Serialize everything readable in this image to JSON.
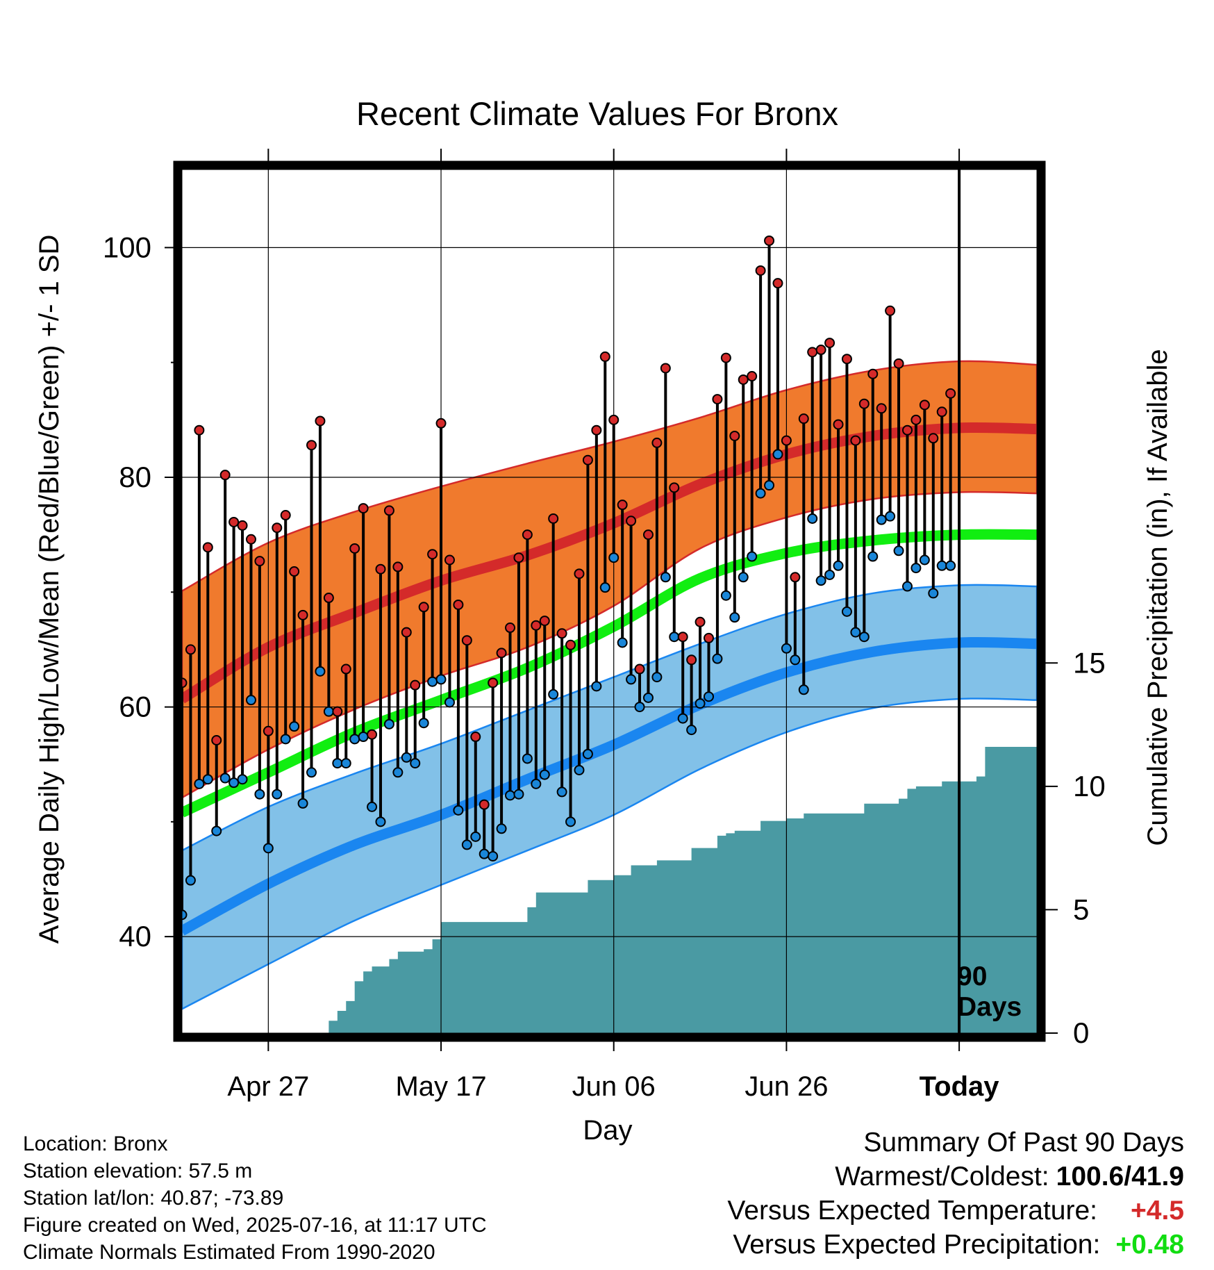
{
  "chart_data": {
    "type": "line",
    "title": "Recent Climate Values For Bronx",
    "xlabel": "Day",
    "ylabel": "Average Daily High/Low/Mean (Red/Blue/Green) +/- 1 SD",
    "y2label": "Cumulative Precipitation (in), If Available",
    "y_ticks": [
      "40",
      "60",
      "80",
      "100"
    ],
    "y2_ticks": [
      "0",
      "5",
      "10",
      "15"
    ],
    "y2lim": [
      0,
      35
    ],
    "ylim": [
      31.6,
      106.8
    ],
    "today_label": [
      "90",
      "Days"
    ],
    "x_start": "2025-04-17",
    "x_end": "2025-07-25",
    "today": "2025-07-16",
    "x_ticks": [
      {
        "date": "2025-04-27",
        "label": "Apr 27"
      },
      {
        "date": "2025-05-17",
        "label": "May 17"
      },
      {
        "date": "2025-06-06",
        "label": "Jun 06"
      },
      {
        "date": "2025-06-26",
        "label": "Jun 26"
      },
      {
        "date": "2025-07-16",
        "label": "Today"
      }
    ],
    "normals": {
      "dates": [
        "2025-04-17",
        "2025-04-27",
        "2025-05-07",
        "2025-05-17",
        "2025-05-27",
        "2025-06-06",
        "2025-06-16",
        "2025-06-26",
        "2025-07-06",
        "2025-07-16",
        "2025-07-25"
      ],
      "high": [
        60.7,
        65.2,
        68.2,
        71.0,
        73.2,
        76.0,
        79.4,
        82.0,
        83.6,
        84.3,
        84.2
      ],
      "high_upper": [
        70.1,
        74.3,
        77.0,
        79.2,
        81.2,
        83.1,
        85.2,
        87.6,
        89.3,
        90.1,
        89.8
      ],
      "high_lower": [
        52.1,
        56.3,
        59.8,
        62.7,
        65.2,
        68.8,
        73.8,
        76.5,
        78.1,
        78.7,
        78.6
      ],
      "mean": [
        50.8,
        54.3,
        57.8,
        60.6,
        63.4,
        67.0,
        71.2,
        73.4,
        74.5,
        75.0,
        75.0
      ],
      "low": [
        40.5,
        44.6,
        48.0,
        50.6,
        53.7,
        56.7,
        60.2,
        63.0,
        64.8,
        65.6,
        65.5
      ],
      "low_upper": [
        47.5,
        51.3,
        54.2,
        56.8,
        59.7,
        62.6,
        65.5,
        68.1,
        69.9,
        70.6,
        70.5
      ],
      "low_lower": [
        33.7,
        37.6,
        41.4,
        44.5,
        47.5,
        50.6,
        54.6,
        57.8,
        59.9,
        60.7,
        60.6
      ]
    },
    "series": [
      {
        "name": "High",
        "values": [
          62.1,
          65.0,
          84.1,
          73.9,
          57.1,
          80.2,
          76.1,
          75.8,
          74.6,
          72.7,
          57.9,
          75.6,
          76.7,
          71.8,
          68.0,
          82.8,
          84.9,
          69.5,
          59.6,
          63.3,
          73.8,
          77.3,
          57.6,
          72.0,
          77.1,
          72.2,
          66.5,
          61.9,
          68.7,
          73.3,
          84.7,
          72.8,
          68.9,
          65.8,
          57.4,
          51.5,
          62.1,
          64.7,
          66.9,
          73.0,
          75.0,
          67.1,
          67.5,
          76.4,
          66.4,
          65.4,
          71.6,
          81.5,
          84.1,
          90.5,
          85.0,
          77.6,
          76.2,
          63.3,
          75.0,
          83.0,
          89.5,
          79.1,
          66.1,
          64.1,
          67.4,
          66.0,
          86.8,
          90.4,
          83.6,
          88.5,
          88.8,
          98.0,
          100.6,
          96.9,
          83.2,
          71.3,
          85.1,
          90.9,
          91.1,
          91.7,
          84.6,
          90.3,
          83.2,
          86.4,
          89.0,
          86.0,
          94.5,
          89.9,
          84.1,
          85.0,
          86.3,
          83.4,
          85.7,
          87.3
        ]
      },
      {
        "name": "Low",
        "values": [
          41.9,
          44.9,
          53.3,
          53.7,
          49.2,
          53.8,
          53.4,
          53.7,
          60.6,
          52.4,
          47.7,
          52.4,
          57.2,
          58.3,
          51.6,
          54.3,
          63.1,
          59.6,
          55.1,
          55.1,
          57.2,
          57.4,
          51.3,
          50.0,
          58.5,
          54.3,
          55.6,
          55.1,
          58.6,
          62.2,
          62.4,
          60.4,
          51.0,
          48.0,
          48.7,
          47.2,
          47.0,
          49.4,
          52.3,
          52.4,
          55.5,
          53.3,
          54.1,
          61.1,
          52.6,
          50.0,
          54.5,
          55.9,
          61.8,
          70.4,
          73.0,
          65.6,
          62.4,
          60.0,
          60.8,
          62.6,
          71.3,
          66.1,
          59.0,
          58.0,
          60.3,
          60.9,
          64.2,
          69.7,
          67.8,
          71.3,
          73.1,
          78.6,
          79.3,
          82.0,
          65.1,
          64.1,
          61.5,
          76.4,
          71.0,
          71.5,
          72.3,
          68.3,
          66.5,
          66.1,
          73.1,
          76.3,
          76.6,
          73.6,
          70.5,
          72.1,
          72.8,
          69.9,
          72.3,
          72.3
        ]
      },
      {
        "name": "Cumulative Precipitation",
        "values": [
          0,
          0,
          0,
          0,
          0,
          0,
          0,
          0,
          0,
          0,
          0,
          0,
          0,
          0,
          0,
          0,
          0,
          0.5,
          0.9,
          1.3,
          2.1,
          2.5,
          2.7,
          2.7,
          3.0,
          3.3,
          3.3,
          3.3,
          3.4,
          3.8,
          4.5,
          4.5,
          4.5,
          4.5,
          4.5,
          4.5,
          4.5,
          4.5,
          4.5,
          4.5,
          5.1,
          5.7,
          5.7,
          5.7,
          5.7,
          5.7,
          5.7,
          6.2,
          6.2,
          6.2,
          6.4,
          6.4,
          6.8,
          6.8,
          6.8,
          7.0,
          7.0,
          7.0,
          7.0,
          7.5,
          7.5,
          7.5,
          8.0,
          8.1,
          8.2,
          8.2,
          8.2,
          8.6,
          8.6,
          8.6,
          8.7,
          8.7,
          8.9,
          8.9,
          8.9,
          8.9,
          8.9,
          8.9,
          8.9,
          9.3,
          9.3,
          9.3,
          9.3,
          9.5,
          9.9,
          10.0,
          10.0,
          10.0,
          10.2,
          10.2,
          10.2,
          10.2,
          10.4,
          11.6,
          11.6,
          11.6,
          11.6,
          11.6,
          11.6,
          11.6
        ]
      }
    ],
    "colors": {
      "high_band": "#f07a2d",
      "high_line": "#d42a2a",
      "low_band": "#82c1e8",
      "low_line": "#1a86f0",
      "mean_line": "#11ee11",
      "precip": "#4a9aa3",
      "high_dot": "#d42a2a",
      "low_dot": "#1a86d8"
    },
    "grid": true
  },
  "info": {
    "location": "Location: Bronx",
    "elevation": "Station elevation: 57.5 m",
    "latlon": "Station lat/lon: 40.87; -73.89",
    "created": "Figure created on Wed, 2025-07-16, at 11:17 UTC",
    "normals": "Climate Normals Estimated From 1990-2020"
  },
  "summary": {
    "title": "Summary Of Past 90 Days",
    "warmest_coldest_label": "Warmest/Coldest:",
    "warmest_coldest_value": "100.6/41.9",
    "temp_label": "Versus Expected Temperature:",
    "temp_value": "+4.5",
    "temp_color": "#d42a2a",
    "precip_label": "Versus Expected Precipitation:",
    "precip_value": "+0.48",
    "precip_color": "#11dd11"
  }
}
